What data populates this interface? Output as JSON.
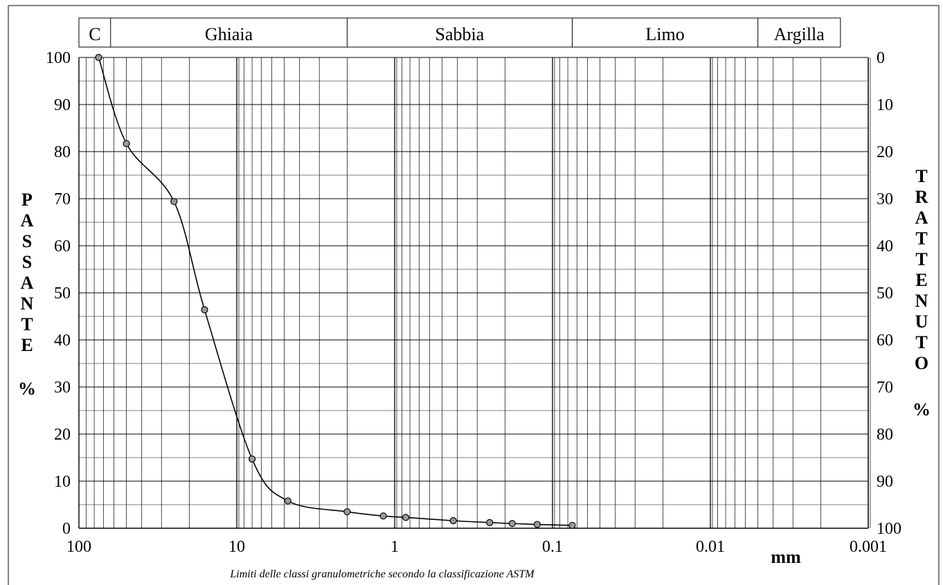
{
  "chart_data": {
    "type": "line",
    "title": "",
    "xlabel": "mm",
    "ylabel_left": "PASSANTE %",
    "ylabel_right": "TRATTENUTO %",
    "x_scale": "log",
    "x_reversed": true,
    "xlim": [
      100,
      0.001
    ],
    "ylim": [
      0,
      100
    ],
    "ylim_right": [
      100,
      0
    ],
    "x_tick_labels": [
      {
        "value": 100,
        "label": "100"
      },
      {
        "value": 10,
        "label": "10"
      },
      {
        "value": 1,
        "label": "1"
      },
      {
        "value": 0.1,
        "label": "0.1"
      },
      {
        "value": 0.01,
        "label": "0.01"
      },
      {
        "value": 0.001,
        "label": "0.001"
      }
    ],
    "y_ticks_left": [
      "0",
      "10",
      "20",
      "30",
      "40",
      "50",
      "60",
      "70",
      "80",
      "90",
      "100"
    ],
    "y_ticks_right": [
      "100",
      "90",
      "80",
      "70",
      "60",
      "50",
      "40",
      "30",
      "20",
      "10",
      "0"
    ],
    "grid": true,
    "classes": [
      {
        "label": "C",
        "from": 100,
        "to": 63
      },
      {
        "label": "Ghiaia",
        "from": 63,
        "to": 2
      },
      {
        "label": "Sabbia",
        "from": 2,
        "to": 0.075
      },
      {
        "label": "Limo",
        "from": 0.075,
        "to": 0.005
      },
      {
        "label": "Argilla",
        "from": 0.005,
        "to": 0.0015
      }
    ],
    "series": [
      {
        "points": [
          {
            "x": 75,
            "y": 100
          },
          {
            "x": 50,
            "y": 81.7
          },
          {
            "x": 25,
            "y": 69.4
          },
          {
            "x": 16,
            "y": 46.4
          },
          {
            "x": 8,
            "y": 14.7
          },
          {
            "x": 4.75,
            "y": 5.8
          },
          {
            "x": 2,
            "y": 3.5
          },
          {
            "x": 1.18,
            "y": 2.6
          },
          {
            "x": 0.85,
            "y": 2.3
          },
          {
            "x": 0.425,
            "y": 1.6
          },
          {
            "x": 0.25,
            "y": 1.2
          },
          {
            "x": 0.18,
            "y": 1.0
          },
          {
            "x": 0.125,
            "y": 0.8
          },
          {
            "x": 0.075,
            "y": 0.6
          }
        ]
      }
    ],
    "footnote": "Limiti delle classi granulometriche secondo la classificazione ASTM"
  }
}
